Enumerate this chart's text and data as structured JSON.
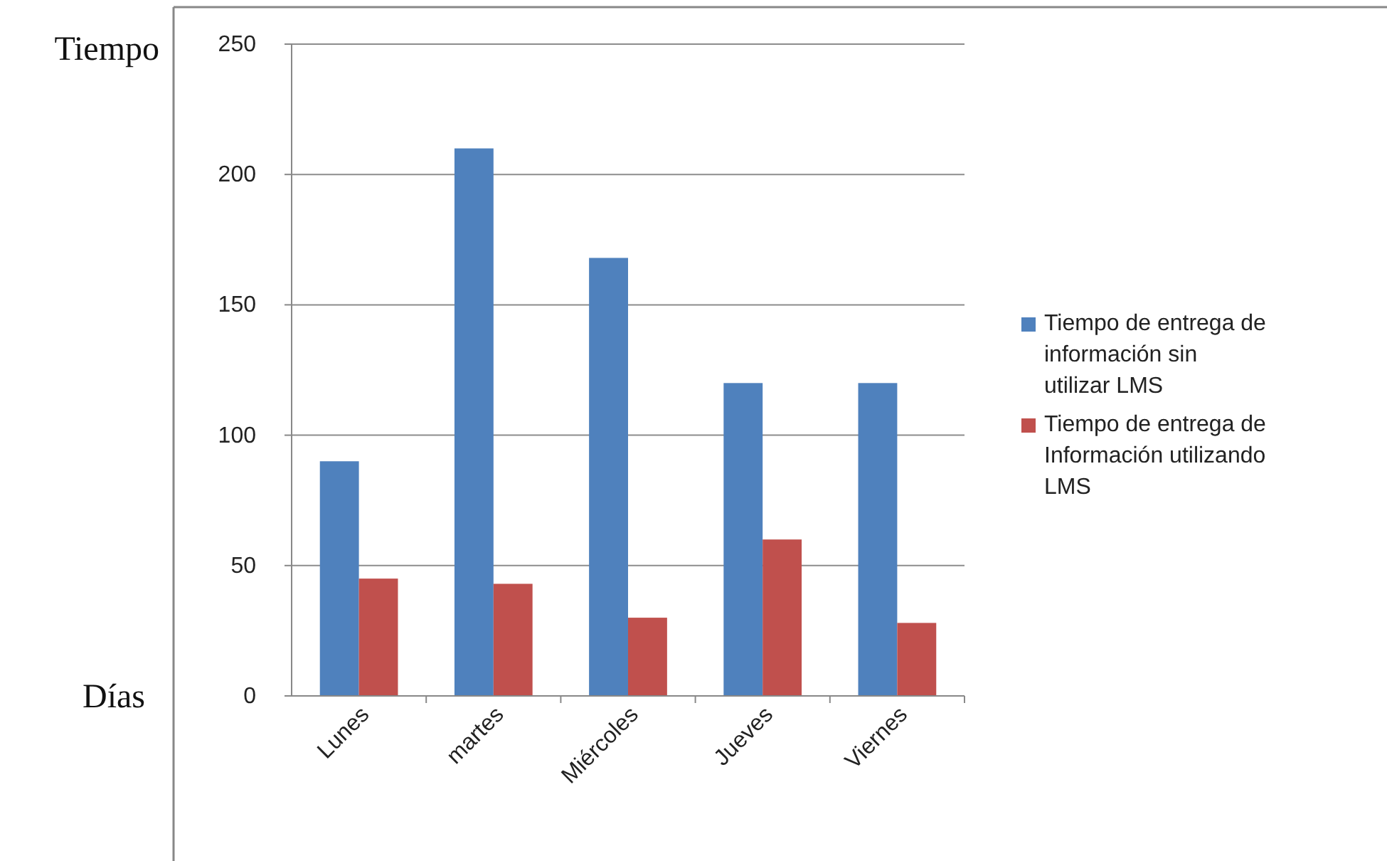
{
  "chart_data": {
    "type": "bar",
    "ylabel": "Tiempo",
    "xlabel": "Días",
    "categories": [
      "Lunes",
      "martes",
      "Miércoles",
      "Jueves",
      "Viernes"
    ],
    "series": [
      {
        "name": "Tiempo de entrega de información sin utilizar LMS",
        "color": "#4f81bd",
        "values": [
          90,
          210,
          168,
          120,
          120
        ]
      },
      {
        "name": "Tiempo de entrega de Información utilizando LMS",
        "color": "#c0504d",
        "values": [
          45,
          43,
          30,
          60,
          28
        ]
      }
    ],
    "ylim": [
      0,
      250
    ],
    "yticks": [
      0,
      50,
      100,
      150,
      200,
      250
    ],
    "grid": "y",
    "legend": "right"
  }
}
